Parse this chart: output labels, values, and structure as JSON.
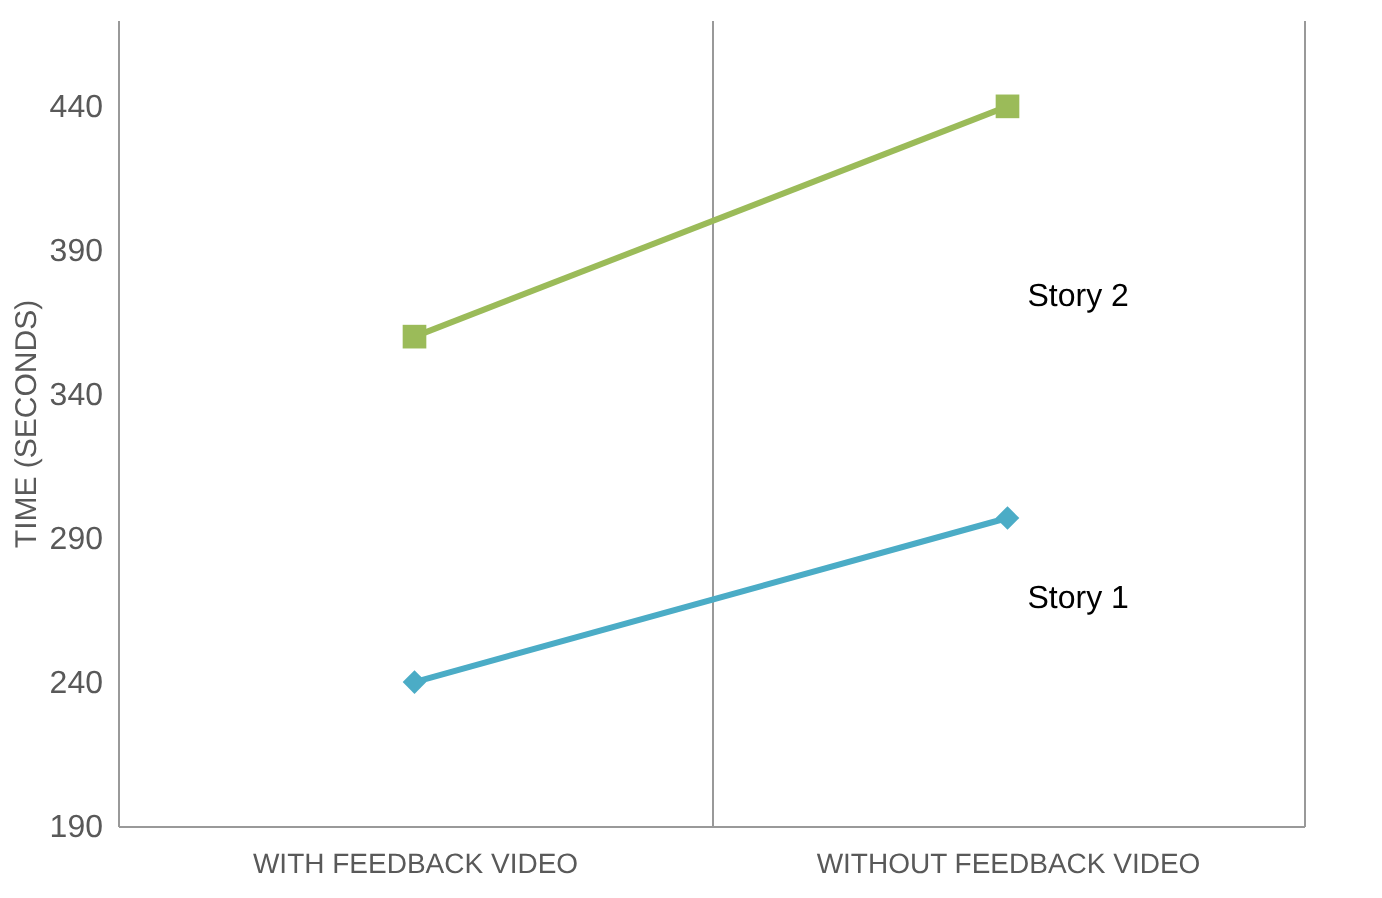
{
  "chart_data": {
    "type": "line",
    "ylabel": "TIME (SECONDS)",
    "categories": [
      "WITH  FEEDBACK  VIDEO",
      "WITHOUT  FEEDBACK  VIDEO"
    ],
    "series": [
      {
        "name": "Story 1",
        "color": "#4bacc6",
        "values": [
          240,
          297
        ],
        "marker": "diamond"
      },
      {
        "name": "Story 2",
        "color": "#9bbb59",
        "values": [
          360,
          440
        ],
        "marker": "square"
      }
    ],
    "ylim": [
      190,
      470
    ],
    "yticks": [
      190,
      240,
      290,
      340,
      390,
      440
    ],
    "grid": "x",
    "legend": false,
    "line_style": "solid"
  }
}
